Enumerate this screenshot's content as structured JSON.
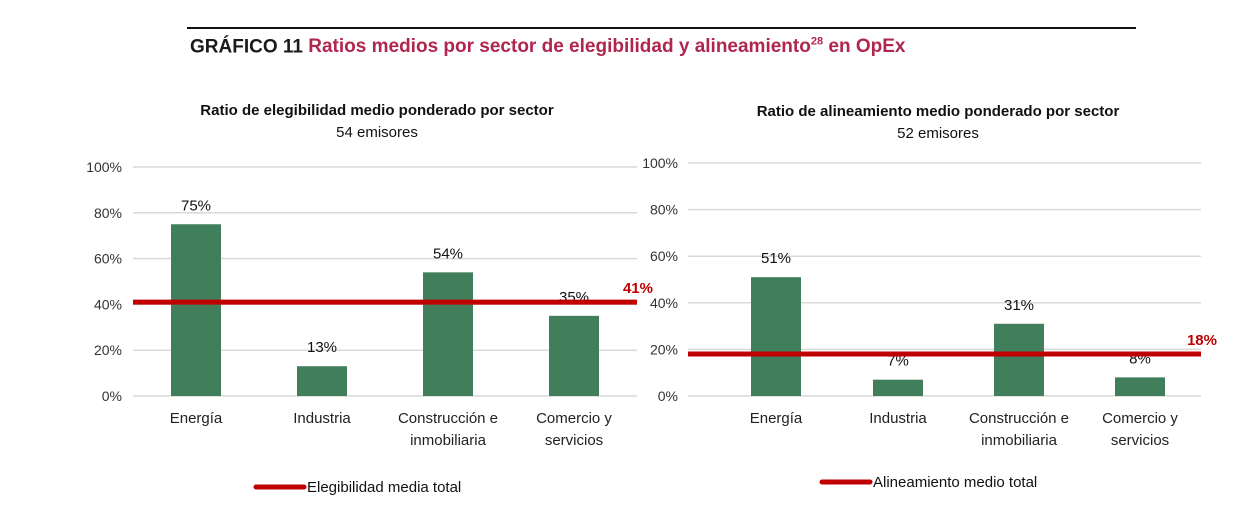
{
  "header": {
    "label": "GRÁFICO 11",
    "title": "Ratios medios por sector de elegibilidad y alineamiento",
    "footnote": "28",
    "title_suffix": " en OpEx"
  },
  "colors": {
    "bar": "#417e5b",
    "line": "#c00000",
    "grid": "#d9d9d9",
    "title": "#b0264f"
  },
  "chart_data": [
    {
      "type": "bar",
      "title": "Ratio de elegibilidad medio ponderado por sector",
      "subtitle": "54 emisores",
      "categories": [
        [
          "Energía"
        ],
        [
          "Industria"
        ],
        [
          "Construcción e",
          "inmobiliaria"
        ],
        [
          "Comercio y",
          "servicios"
        ]
      ],
      "values": [
        75,
        13,
        54,
        35
      ],
      "value_labels": [
        "75%",
        "13%",
        "54%",
        "35%"
      ],
      "yticks": [
        "0%",
        "20%",
        "40%",
        "60%",
        "80%",
        "100%"
      ],
      "ylim": [
        0,
        100
      ],
      "grid": true,
      "reference_line": {
        "value": 41,
        "label": "41%",
        "legend": "Elegibilidad media total"
      },
      "legend_placement": "bottom"
    },
    {
      "type": "bar",
      "title": "Ratio de alineamiento medio ponderado por sector",
      "subtitle": "52 emisores",
      "categories": [
        [
          "Energía"
        ],
        [
          "Industria"
        ],
        [
          "Construcción e",
          "inmobiliaria"
        ],
        [
          "Comercio y",
          "servicios"
        ]
      ],
      "values": [
        51,
        7,
        31,
        8
      ],
      "value_labels": [
        "51%",
        "7%",
        "31%",
        "8%"
      ],
      "yticks": [
        "0%",
        "20%",
        "40%",
        "60%",
        "80%",
        "100%"
      ],
      "ylim": [
        0,
        100
      ],
      "grid": true,
      "reference_line": {
        "value": 18,
        "label": "18%",
        "legend": "Alineamiento medio total"
      },
      "legend_placement": "bottom"
    }
  ]
}
